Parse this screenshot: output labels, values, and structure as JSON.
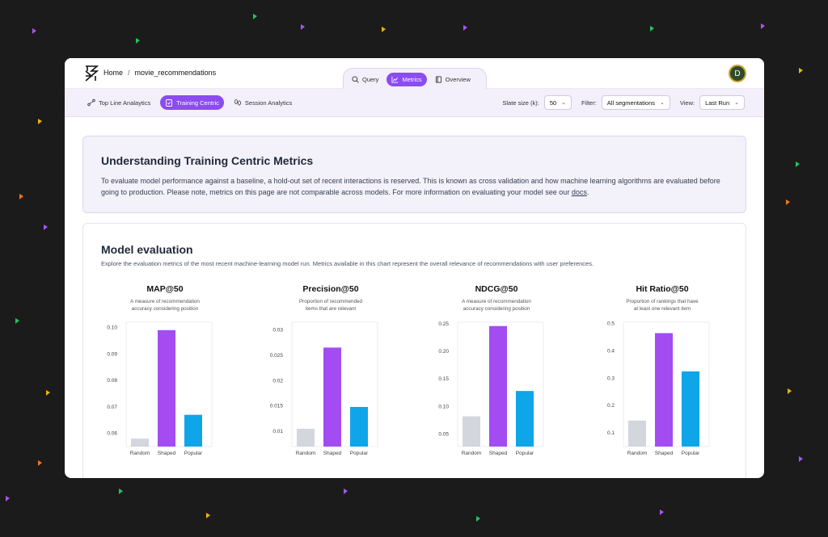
{
  "breadcrumb": {
    "home": "Home",
    "separator": "/",
    "current": "movie_recommendations"
  },
  "tabs": [
    {
      "label": "Query",
      "icon": "search-icon",
      "active": false
    },
    {
      "label": "Metrics",
      "icon": "chart-line-icon",
      "active": true
    },
    {
      "label": "Overview",
      "icon": "book-icon",
      "active": false
    }
  ],
  "user": {
    "initial": "D",
    "avatar_bg": "#2f4a2a",
    "ring": "#c9a330"
  },
  "subtabs": [
    {
      "label": "Top Line Analaytics",
      "icon": "network-icon",
      "active": false
    },
    {
      "label": "Training Centric",
      "icon": "clipboard-check-icon",
      "active": true
    },
    {
      "label": "Session Analytics",
      "icon": "footprints-icon",
      "active": false
    }
  ],
  "controls": {
    "slate_label": "Slate size (k):",
    "slate_value": "50",
    "filter_label": "Filter:",
    "filter_value": "All segmentations",
    "view_label": "View:",
    "view_value": "Last Run"
  },
  "info": {
    "title": "Understanding Training Centric Metrics",
    "body": "To evaluate model performance against a baseline, a hold-out set of recent interactions is reserved. This is known as cross validation and how machine learning algorithms are evaluated before going to production. Please note, metrics on this page are not comparable across models. For more information on evaluating your model see our ",
    "link": "docs",
    "end": "."
  },
  "model": {
    "title": "Model evaluation",
    "description": "Explore the evaluation metrics of the most recent machine-learning model run.  Metrics available in this chart represent the overall relevance of recommendations with user preferences."
  },
  "colors": {
    "accent": "#8b4cf0",
    "random": "#d4d6dd",
    "shaped": "#a24cf2",
    "popular": "#0ea5e9"
  },
  "chart_data": [
    {
      "type": "bar",
      "title": "MAP@50",
      "subtitle": [
        "A measure of recommendation",
        "accuracy considering position"
      ],
      "categories": [
        "Random",
        "Shaped",
        "Popular"
      ],
      "values": [
        0.058,
        0.099,
        0.067
      ],
      "ylim": [
        0.055,
        0.102
      ],
      "yticks": [
        0.06,
        0.07,
        0.08,
        0.09,
        0.1
      ],
      "ytick_labels": [
        "0.06",
        "0.07",
        "0.08",
        "0.09",
        "0.10"
      ]
    },
    {
      "type": "bar",
      "title": "Precision@50",
      "subtitle": [
        "Proportion of recommended",
        "items that are relevant"
      ],
      "categories": [
        "Random",
        "Shaped",
        "Popular"
      ],
      "values": [
        0.0105,
        0.0265,
        0.0148
      ],
      "ylim": [
        0.007,
        0.0315
      ],
      "yticks": [
        0.01,
        0.015,
        0.02,
        0.025,
        0.03
      ],
      "ytick_labels": [
        "0.01",
        "0.015",
        "0.02",
        "0.025",
        "0.03"
      ]
    },
    {
      "type": "bar",
      "title": "NDCG@50",
      "subtitle": [
        "A measure of recommendation",
        "accuracy considering position"
      ],
      "categories": [
        "Random",
        "Shaped",
        "Popular"
      ],
      "values": [
        0.082,
        0.246,
        0.128
      ],
      "ylim": [
        0.027,
        0.253
      ],
      "yticks": [
        0.05,
        0.1,
        0.15,
        0.2,
        0.25
      ],
      "ytick_labels": [
        "0.05",
        "0.10",
        "0.15",
        "0.20",
        "0.25"
      ]
    },
    {
      "type": "bar",
      "title": "Hit Ratio@50",
      "subtitle": [
        "Proportion of rankings that have",
        "at least one relevant item"
      ],
      "categories": [
        "Random",
        "Shaped",
        "Popular"
      ],
      "values": [
        0.145,
        0.465,
        0.325
      ],
      "ylim": [
        0.05,
        0.505
      ],
      "yticks": [
        0.1,
        0.2,
        0.3,
        0.4,
        0.5
      ],
      "ytick_labels": [
        "0.1",
        "0.2",
        "0.3",
        "0.4",
        "0.5"
      ]
    }
  ]
}
